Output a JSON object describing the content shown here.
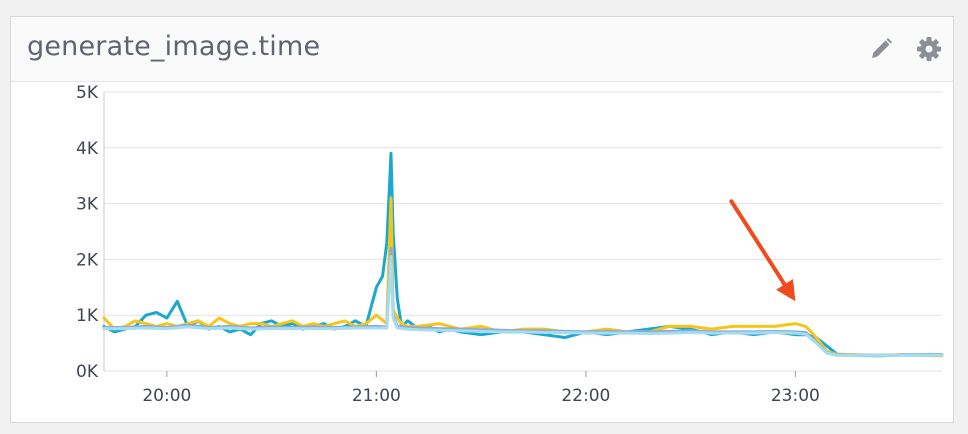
{
  "widget": {
    "title": "generate_image.time",
    "icons": {
      "edit": "pencil-icon",
      "settings": "gear-icon"
    }
  },
  "chart_data": {
    "type": "line",
    "title": "generate_image.time",
    "xlabel": "",
    "ylabel": "",
    "xlim": [
      19.7,
      23.7
    ],
    "ylim": [
      0,
      5000
    ],
    "grid": true,
    "legend": "none",
    "y_ticks": [
      0,
      1000,
      2000,
      3000,
      4000,
      5000
    ],
    "y_tick_labels": [
      "0K",
      "1K",
      "2K",
      "3K",
      "4K",
      "5K"
    ],
    "x_ticks": [
      20,
      21,
      22,
      23
    ],
    "x_tick_labels": [
      "20:00",
      "21:00",
      "22:00",
      "23:00"
    ],
    "annotation": {
      "type": "arrow",
      "color": "#f04a1e",
      "points_to_x": 23.0,
      "points_to_y": 1250
    },
    "series": [
      {
        "color": "#1ba8cf",
        "x": [
          19.7,
          19.75,
          19.8,
          19.85,
          19.9,
          19.95,
          20.0,
          20.05,
          20.1,
          20.15,
          20.2,
          20.25,
          20.3,
          20.35,
          20.4,
          20.45,
          20.5,
          20.55,
          20.6,
          20.65,
          20.7,
          20.75,
          20.8,
          20.85,
          20.9,
          20.95,
          21.0,
          21.03,
          21.05,
          21.07,
          21.08,
          21.1,
          21.12,
          21.15,
          21.2,
          21.25,
          21.3,
          21.35,
          21.4,
          21.5,
          21.6,
          21.7,
          21.8,
          21.9,
          22.0,
          22.1,
          22.2,
          22.3,
          22.4,
          22.5,
          22.6,
          22.7,
          22.8,
          22.9,
          23.0,
          23.05,
          23.1,
          23.15,
          23.2,
          23.3,
          23.4,
          23.5,
          23.6,
          23.7
        ],
        "y": [
          800,
          700,
          750,
          800,
          1000,
          1050,
          950,
          1250,
          800,
          900,
          750,
          800,
          700,
          750,
          650,
          850,
          900,
          800,
          850,
          750,
          800,
          850,
          750,
          800,
          900,
          800,
          1500,
          1700,
          2300,
          3900,
          2500,
          1300,
          800,
          900,
          750,
          800,
          700,
          750,
          700,
          650,
          700,
          700,
          650,
          600,
          700,
          650,
          700,
          750,
          800,
          750,
          650,
          700,
          650,
          700,
          650,
          650,
          600,
          450,
          300,
          280,
          270,
          290,
          290,
          290
        ]
      },
      {
        "color": "#f5c518",
        "x": [
          19.7,
          19.75,
          19.8,
          19.85,
          19.9,
          19.95,
          20.0,
          20.05,
          20.1,
          20.15,
          20.2,
          20.25,
          20.3,
          20.35,
          20.4,
          20.45,
          20.5,
          20.55,
          20.6,
          20.65,
          20.7,
          20.75,
          20.8,
          20.85,
          20.9,
          20.95,
          21.0,
          21.05,
          21.07,
          21.08,
          21.1,
          21.12,
          21.15,
          21.2,
          21.3,
          21.4,
          21.5,
          21.6,
          21.7,
          21.8,
          21.9,
          22.0,
          22.1,
          22.2,
          22.3,
          22.4,
          22.5,
          22.6,
          22.7,
          22.8,
          22.9,
          23.0,
          23.05,
          23.1,
          23.15,
          23.2,
          23.3,
          23.4,
          23.5,
          23.6,
          23.7
        ],
        "y": [
          950,
          750,
          800,
          900,
          850,
          800,
          850,
          800,
          850,
          900,
          800,
          950,
          850,
          800,
          850,
          850,
          800,
          850,
          900,
          800,
          850,
          800,
          850,
          900,
          800,
          850,
          1000,
          850,
          3100,
          1100,
          950,
          850,
          800,
          800,
          850,
          750,
          800,
          700,
          750,
          750,
          700,
          700,
          750,
          700,
          700,
          800,
          800,
          750,
          800,
          800,
          800,
          850,
          800,
          600,
          350,
          300,
          290,
          280,
          290,
          280,
          270
        ]
      },
      {
        "color": "#8aa9e0",
        "x": [
          19.7,
          19.8,
          19.9,
          20.0,
          20.1,
          20.2,
          20.3,
          20.4,
          20.5,
          20.6,
          20.7,
          20.8,
          20.9,
          21.0,
          21.05,
          21.07,
          21.08,
          21.1,
          21.15,
          21.2,
          21.3,
          21.4,
          21.5,
          21.6,
          21.7,
          21.8,
          21.9,
          22.0,
          22.1,
          22.2,
          22.3,
          22.4,
          22.5,
          22.6,
          22.7,
          22.8,
          22.9,
          23.0,
          23.05,
          23.1,
          23.15,
          23.2,
          23.3,
          23.4,
          23.5,
          23.6,
          23.7
        ],
        "y": [
          780,
          780,
          800,
          780,
          820,
          780,
          800,
          770,
          790,
          780,
          790,
          780,
          790,
          800,
          790,
          2200,
          1000,
          800,
          780,
          770,
          760,
          750,
          740,
          730,
          720,
          720,
          710,
          700,
          710,
          700,
          700,
          710,
          720,
          700,
          700,
          700,
          710,
          700,
          690,
          520,
          330,
          290,
          285,
          285,
          285,
          285,
          285
        ]
      },
      {
        "color": "#a6dcec",
        "x": [
          19.7,
          19.8,
          19.9,
          20.0,
          20.1,
          20.2,
          20.3,
          20.4,
          20.5,
          20.6,
          20.7,
          20.8,
          20.9,
          21.0,
          21.05,
          21.07,
          21.08,
          21.1,
          21.15,
          21.2,
          21.3,
          21.4,
          21.5,
          21.6,
          21.7,
          21.8,
          21.9,
          22.0,
          22.1,
          22.2,
          22.3,
          22.4,
          22.5,
          22.6,
          22.7,
          22.8,
          22.9,
          23.0,
          23.05,
          23.1,
          23.15,
          23.2,
          23.3,
          23.4,
          23.5,
          23.6,
          23.7
        ],
        "y": [
          760,
          760,
          770,
          760,
          790,
          760,
          770,
          750,
          760,
          760,
          760,
          760,
          770,
          770,
          770,
          2050,
          950,
          770,
          750,
          740,
          730,
          720,
          710,
          700,
          700,
          690,
          690,
          680,
          680,
          680,
          670,
          680,
          690,
          680,
          680,
          680,
          690,
          680,
          660,
          500,
          320,
          280,
          280,
          280,
          280,
          280,
          280
        ]
      }
    ]
  }
}
